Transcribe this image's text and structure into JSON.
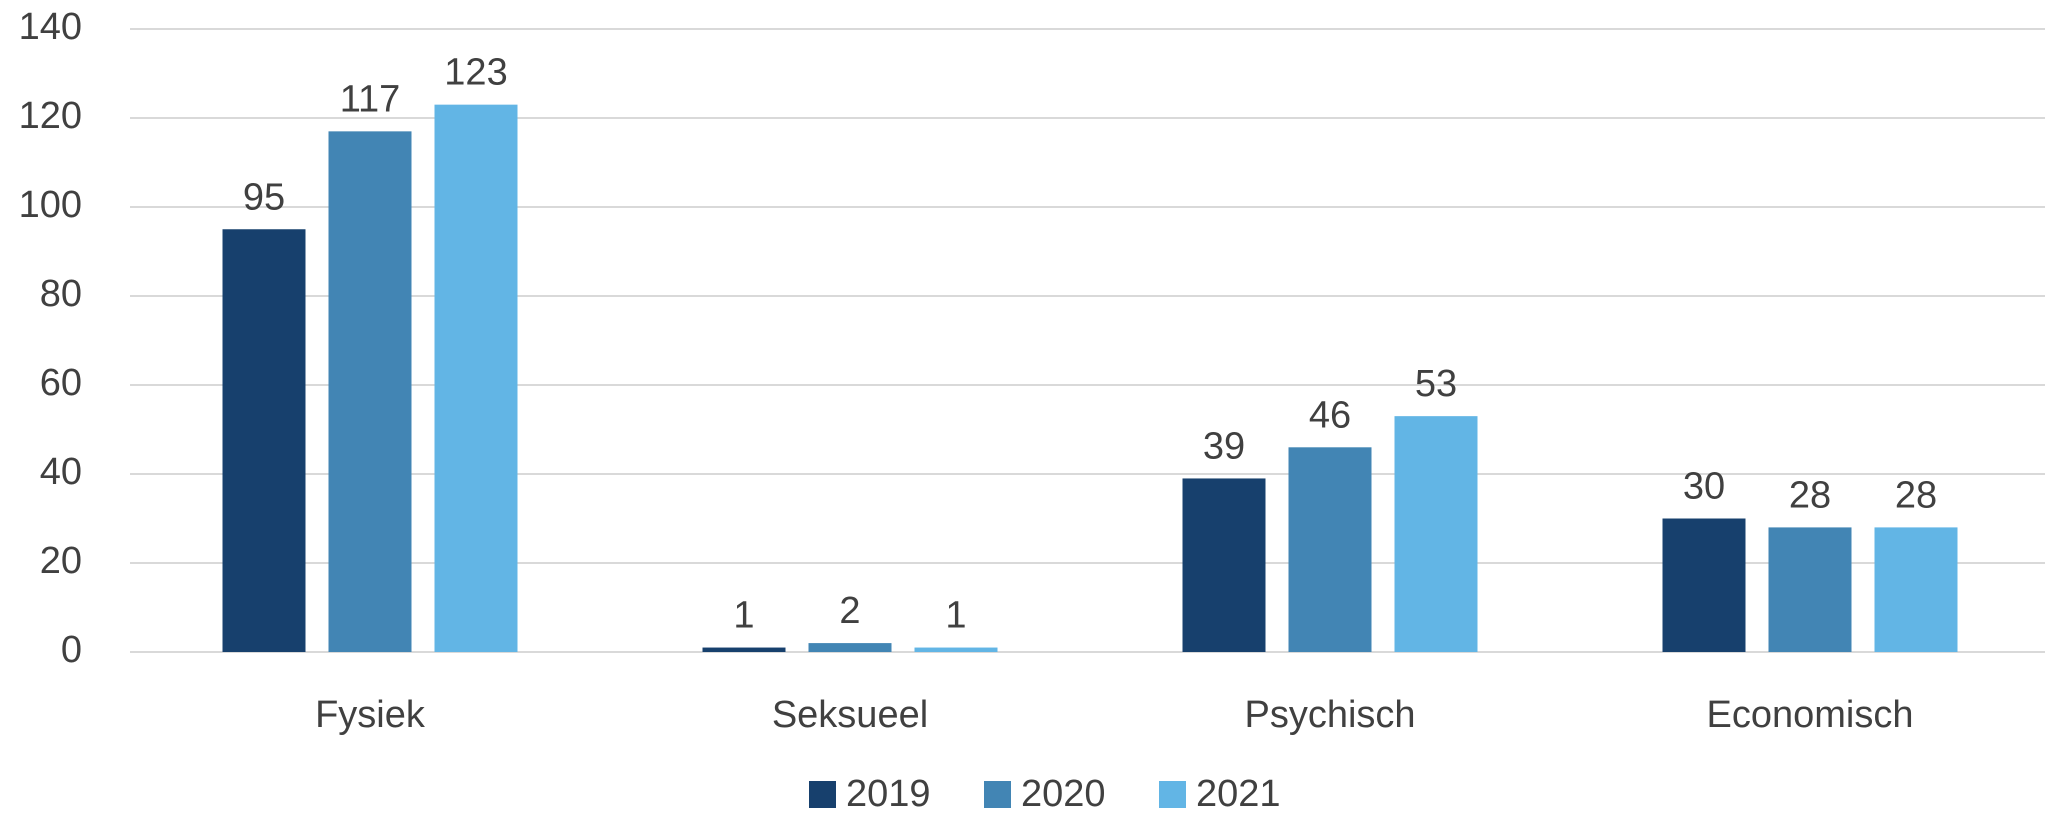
{
  "chart_data": {
    "type": "bar",
    "categories": [
      "Fysiek",
      "Seksueel",
      "Psychisch",
      "Economisch"
    ],
    "series": [
      {
        "name": "2019",
        "color": "#17406d",
        "values": [
          95,
          1,
          39,
          30
        ]
      },
      {
        "name": "2020",
        "color": "#4285b4",
        "values": [
          117,
          2,
          46,
          28
        ]
      },
      {
        "name": "2021",
        "color": "#62b5e5",
        "values": [
          123,
          1,
          53,
          28
        ]
      }
    ],
    "ylim": [
      0,
      140
    ],
    "yticks": [
      0,
      20,
      40,
      60,
      80,
      100,
      120,
      140
    ],
    "grid": true,
    "legend": "bottom"
  }
}
